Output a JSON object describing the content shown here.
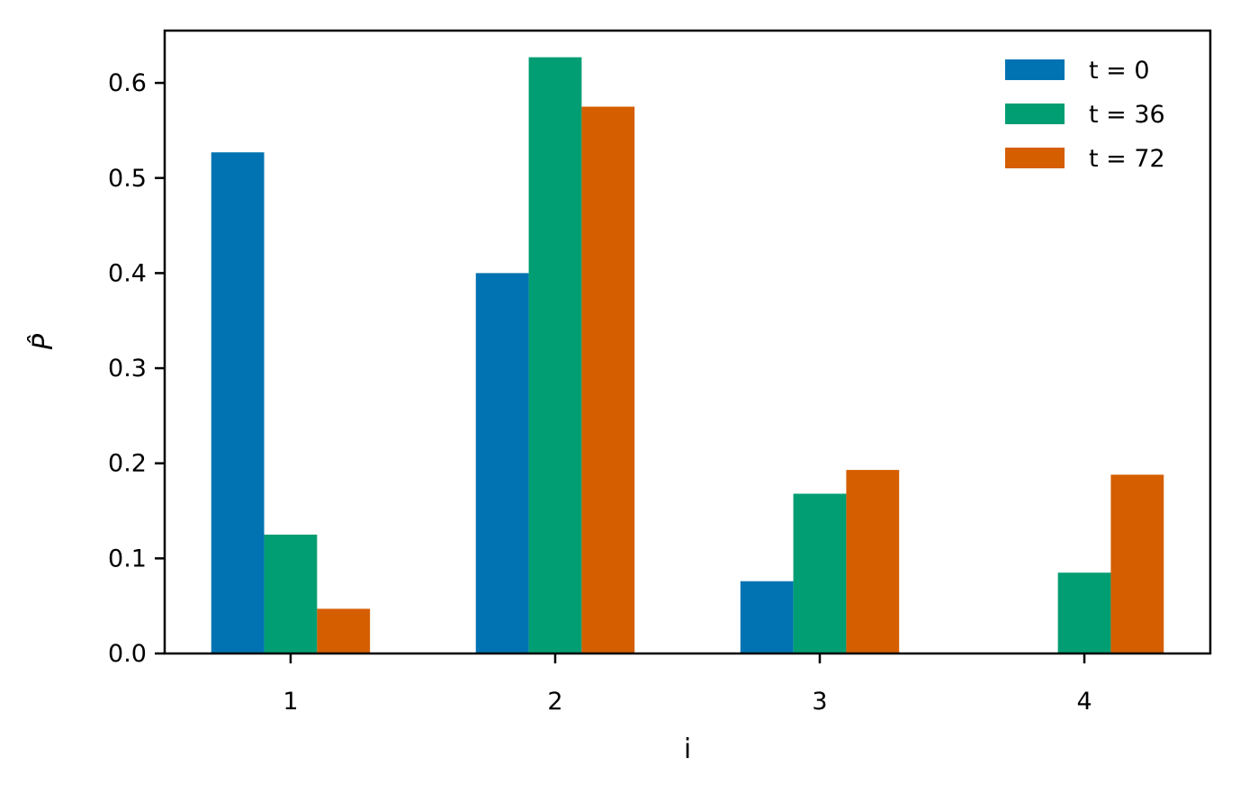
{
  "chart_data": {
    "type": "bar",
    "categories": [
      "1",
      "2",
      "3",
      "4"
    ],
    "series": [
      {
        "name": "t = 0",
        "color": "#0173b2",
        "values": [
          0.527,
          0.4,
          0.076,
          0.0
        ]
      },
      {
        "name": "t = 36",
        "color": "#029e73",
        "values": [
          0.125,
          0.627,
          0.168,
          0.085
        ]
      },
      {
        "name": "t = 72",
        "color": "#d55e00",
        "values": [
          0.047,
          0.575,
          0.193,
          0.188
        ]
      }
    ],
    "xlabel": "i",
    "ylabel": "P̂",
    "ylim": [
      0,
      0.655
    ],
    "yticks": [
      "0.0",
      "0.1",
      "0.2",
      "0.3",
      "0.4",
      "0.5",
      "0.6"
    ],
    "grid": false,
    "legend_position": "top-right"
  }
}
